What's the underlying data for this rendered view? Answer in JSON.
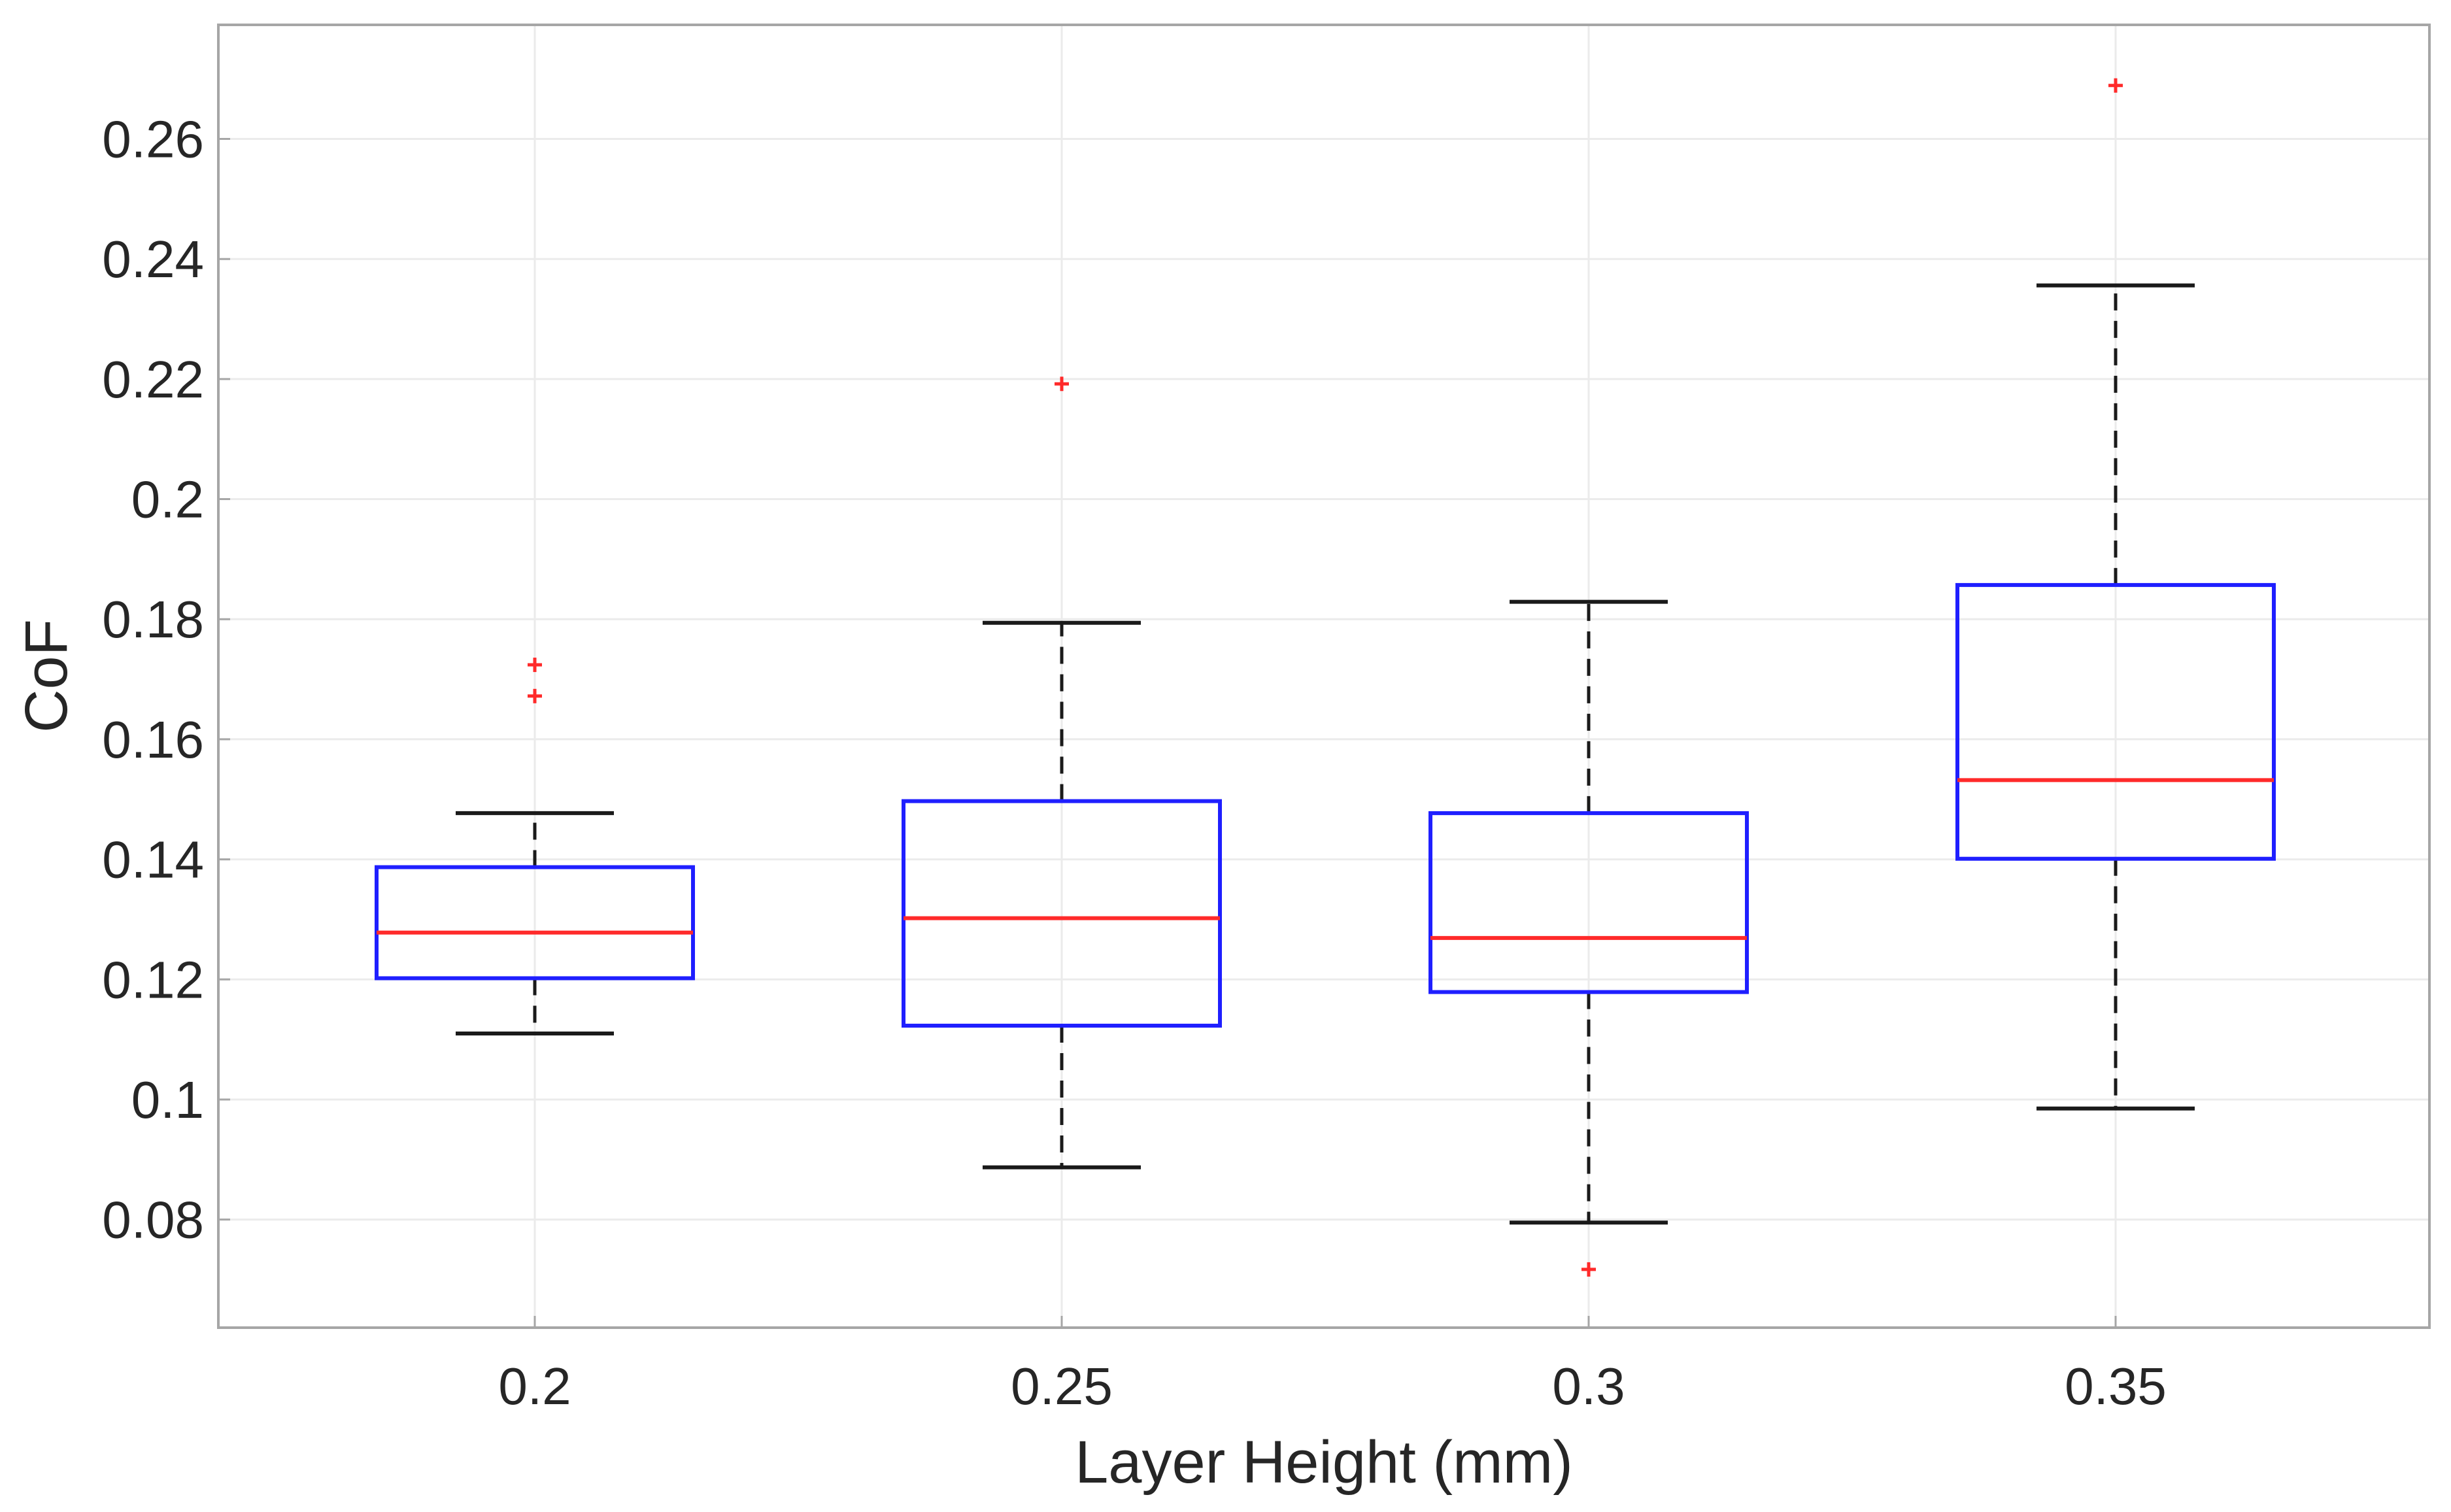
{
  "colors": {
    "box": "#1f1fff",
    "median": "#ff2a2a",
    "whisker": "#1a1a1a",
    "outlier": "#ff2a2a",
    "grid": "#ebebeb",
    "axes": "#a6a6a6",
    "text": "#262626"
  },
  "chart_data": {
    "type": "box",
    "title": "",
    "xlabel": "Layer Height (mm)",
    "ylabel": "CoF",
    "ylim": [
      0.062,
      0.279
    ],
    "grid": true,
    "yticks": [
      {
        "value": 0.08,
        "label": "0.08"
      },
      {
        "value": 0.1,
        "label": "0.1"
      },
      {
        "value": 0.12,
        "label": "0.12"
      },
      {
        "value": 0.14,
        "label": "0.14"
      },
      {
        "value": 0.16,
        "label": "0.16"
      },
      {
        "value": 0.18,
        "label": "0.18"
      },
      {
        "value": 0.2,
        "label": "0.2"
      },
      {
        "value": 0.22,
        "label": "0.22"
      },
      {
        "value": 0.24,
        "label": "0.24"
      },
      {
        "value": 0.26,
        "label": "0.26"
      }
    ],
    "categories": [
      "0.2",
      "0.25",
      "0.3",
      "0.35"
    ],
    "boxes": [
      {
        "category": "0.2",
        "whisker_low": 0.111,
        "q1": 0.1202,
        "median": 0.1278,
        "q3": 0.1387,
        "whisker_high": 0.1477,
        "outliers": [
          0.1672,
          0.1724
        ]
      },
      {
        "category": "0.25",
        "whisker_low": 0.0887,
        "q1": 0.1123,
        "median": 0.1302,
        "q3": 0.1497,
        "whisker_high": 0.1794,
        "outliers": [
          0.2192
        ]
      },
      {
        "category": "0.3",
        "whisker_low": 0.0795,
        "q1": 0.1179,
        "median": 0.1269,
        "q3": 0.1477,
        "whisker_high": 0.1829,
        "outliers": [
          0.0717
        ]
      },
      {
        "category": "0.35",
        "whisker_low": 0.0985,
        "q1": 0.1401,
        "median": 0.1532,
        "q3": 0.1857,
        "whisker_high": 0.2356,
        "outliers": [
          0.2689
        ]
      }
    ]
  }
}
